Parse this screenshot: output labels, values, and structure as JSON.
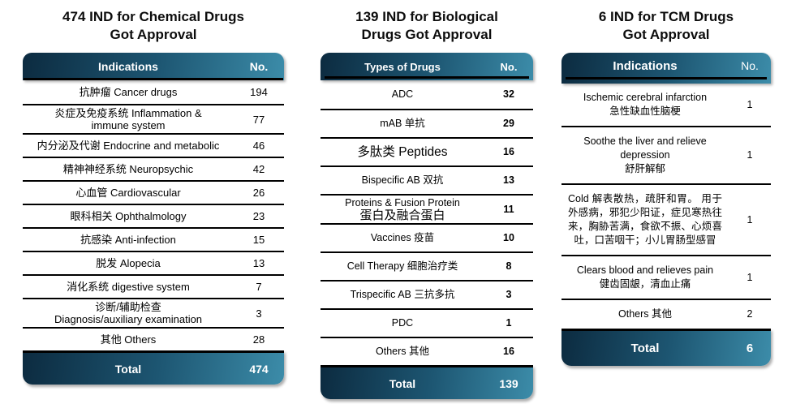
{
  "colors": {
    "header_gradient_start": "#0c2b40",
    "header_gradient_mid": "#1d5672",
    "header_gradient_end": "#3c8ca9",
    "header_text": "#ffffff",
    "body_text": "#000000",
    "divider": "#000000"
  },
  "tables": [
    {
      "id": "chemical",
      "title": "474 IND for Chemical Drugs\nGot Approval",
      "col_label": "Indications",
      "col_value": "No.",
      "rows": [
        {
          "label": "抗肿瘤 Cancer drugs",
          "value": "194"
        },
        {
          "label": "炎症及免疫系统 Inflammation &\nimmune system",
          "value": "77"
        },
        {
          "label": "内分泌及代谢 Endocrine and metabolic",
          "value": "46"
        },
        {
          "label": "精神神经系统 Neuropsychic",
          "value": "42"
        },
        {
          "label": "心血管 Cardiovascular",
          "value": "26"
        },
        {
          "label": "眼科相关 Ophthalmology",
          "value": "23"
        },
        {
          "label": "抗感染 Anti-infection",
          "value": "15"
        },
        {
          "label": "脱发 Alopecia",
          "value": "13"
        },
        {
          "label": "消化系统 digestive system",
          "value": "7"
        },
        {
          "label": "诊断/辅助检查\nDiagnosis/auxiliary examination",
          "value": "3"
        },
        {
          "label": "其他 Others",
          "value": "28"
        }
      ],
      "total_label": "Total",
      "total_value": "474"
    },
    {
      "id": "biological",
      "title": "139 IND for Biological\nDrugs Got Approval",
      "col_label": "Types of Drugs",
      "col_value": "No.",
      "rows": [
        {
          "label": "ADC",
          "value": "32"
        },
        {
          "label": "mAB 单抗",
          "value": "29"
        },
        {
          "label": "多肽类 Peptides",
          "value": "16",
          "size": "lg"
        },
        {
          "label": "Bispecific AB 双抗",
          "value": "13"
        },
        {
          "label": "Proteins & Fusion Protein",
          "sub": "蛋白及融合蛋白",
          "value": "11"
        },
        {
          "label": "Vaccines 疫苗",
          "value": "10"
        },
        {
          "label": "Cell Therapy 细胞治疗类",
          "value": "8"
        },
        {
          "label": "Trispecific AB 三抗多抗",
          "value": "3"
        },
        {
          "label": "PDC",
          "value": "1"
        },
        {
          "label": "Others 其他",
          "value": "16"
        }
      ],
      "total_label": "Total",
      "total_value": "139"
    },
    {
      "id": "tcm",
      "title": "6 IND for TCM Drugs\nGot Approval",
      "col_label": "Indications",
      "col_value": "No.",
      "rows": [
        {
          "label": "Ischemic cerebral infarction\n急性缺血性脑梗",
          "value": "1"
        },
        {
          "label": "Soothe the liver and relieve depression\n舒肝解郁",
          "value": "1"
        },
        {
          "label": "Cold 解表散热，疏肝和胃。 用于外感病，邪犯少阳证，症见寒热往来，胸胁苦满，食欲不振、心烦喜吐，口苦咽干；小儿胃肠型感冒",
          "value": "1",
          "align": "justify"
        },
        {
          "label": "Clears blood and relieves pain\n健齿固龈，清血止痛",
          "value": "1"
        },
        {
          "label": "Others 其他",
          "value": "2"
        }
      ],
      "total_label": "Total",
      "total_value": "6"
    }
  ]
}
